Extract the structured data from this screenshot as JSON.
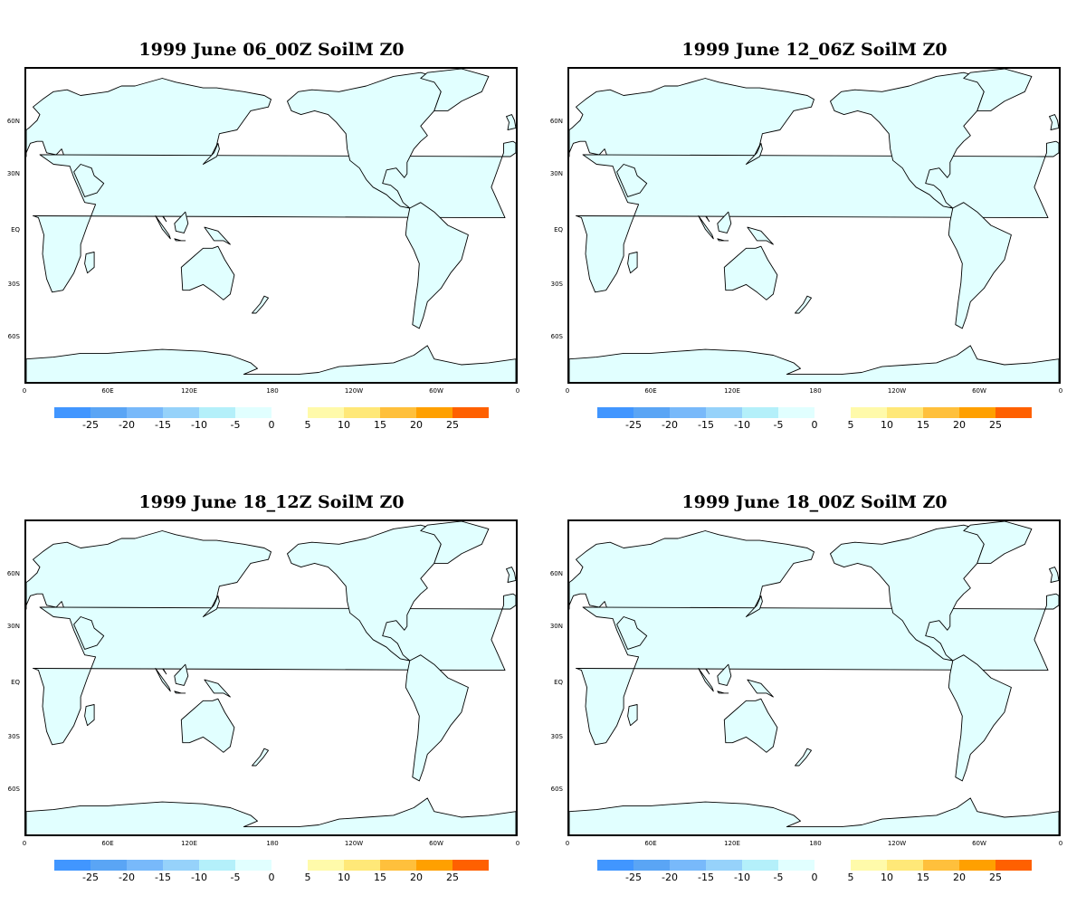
{
  "panels": [
    {
      "title": "1999 June 06_00Z SoilM Z0"
    },
    {
      "title": "1999 June 12_06Z SoilM Z0"
    },
    {
      "title": "1999 June 18_12Z SoilM Z0"
    },
    {
      "title": "1999 June 18_00Z SoilM Z0"
    }
  ],
  "lat_labels": [
    "60N",
    "30N",
    "EQ",
    "30S",
    "60S"
  ],
  "lon_labels": [
    "0",
    "60E",
    "120E",
    "180",
    "120W",
    "60W",
    "0"
  ],
  "legend": {
    "negative_labels": [
      "-25",
      "-20",
      "-15",
      "-10",
      "-5",
      "0"
    ],
    "positive_labels": [
      "5",
      "10",
      "15",
      "20",
      "25"
    ],
    "negative_colors": [
      "#4196ff",
      "#5aa5f5",
      "#78b9fa",
      "#96d2fa",
      "#b4f0fa",
      "#e1ffff"
    ],
    "positive_colors": [
      "#fffaaa",
      "#ffe878",
      "#ffc03c",
      "#ffa000",
      "#ff6000"
    ]
  },
  "colors": {
    "land_fill": "#e1ffff",
    "coastline": "#000000"
  }
}
